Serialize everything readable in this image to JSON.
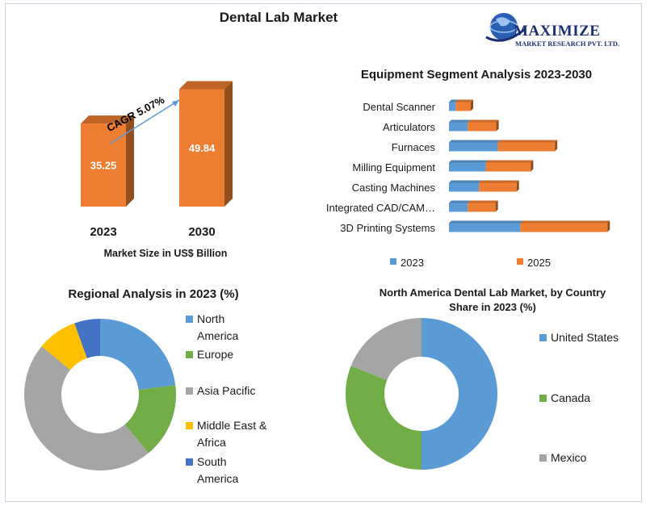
{
  "header": {
    "title": "Dental Lab Market"
  },
  "logo": {
    "brand": "MAXIMIZE",
    "sub": "MARKET RESEARCH PVT. LTD."
  },
  "colors": {
    "orange": "#ed7d31",
    "blue": "#5b9bd5",
    "green": "#70ad47",
    "gray": "#a5a5a5",
    "yellow": "#ffc000",
    "darkblue": "#4472c4"
  },
  "market_size": {
    "caption": "Market Size in US$ Billion",
    "cagr_label": "CAGR 5.07%"
  },
  "equipment": {
    "title": "Equipment Segment Analysis 2023-2030"
  },
  "regional": {
    "title": "Regional Analysis in 2023 (%)"
  },
  "north_america": {
    "title_line1": "North America Dental Lab Market, by Country",
    "title_line2": "Share in 2023 (%)"
  },
  "chart_data": [
    {
      "type": "bar",
      "categories": [
        "2023",
        "2030"
      ],
      "values": [
        35.25,
        49.84
      ],
      "data_labels": [
        "35.25",
        "49.84"
      ],
      "xlabel": "Market Size in US$ Billion",
      "annotation": "CAGR 5.07%"
    },
    {
      "type": "bar",
      "orientation": "horizontal-stacked",
      "title": "Equipment Segment Analysis 2023-2030",
      "categories": [
        "Dental Scanner",
        "Articulators",
        "Furnaces",
        "Milling Equipment",
        "Casting Machines",
        "Integrated CAD/CAM…",
        "3D Printing Systems"
      ],
      "series": [
        {
          "name": "2023",
          "color": "#5b9bd5",
          "values": [
            0.9,
            2.5,
            6.5,
            4.9,
            4.0,
            2.5,
            9.5
          ]
        },
        {
          "name": "2025",
          "color": "#ed7d31",
          "values": [
            2.0,
            3.8,
            7.6,
            6.0,
            5.0,
            3.7,
            11.6
          ]
        }
      ],
      "legend": "bottom"
    },
    {
      "type": "pie",
      "donut": true,
      "title": "Regional Analysis in 2023 (%)",
      "labels": [
        "North America",
        "Europe",
        "Asia Pacific",
        "Middle East & Africa",
        "South America"
      ],
      "legend_lines": [
        [
          "North",
          "America"
        ],
        [
          "Europe"
        ],
        [
          "Asia Pacific"
        ],
        [
          "Middle East &",
          "Africa"
        ],
        [
          "South",
          "America"
        ]
      ],
      "values": [
        23,
        16,
        47,
        8.5,
        5.5
      ],
      "colors": [
        "#5b9bd5",
        "#70ad47",
        "#a5a5a5",
        "#ffc000",
        "#4472c4"
      ],
      "legend": "right"
    },
    {
      "type": "pie",
      "donut": true,
      "title": "North America Dental Lab Market, by Country Share in 2023 (%)",
      "labels": [
        "United States",
        "Canada",
        "Mexico"
      ],
      "values": [
        50,
        31,
        19
      ],
      "colors": [
        "#5b9bd5",
        "#70ad47",
        "#a5a5a5"
      ],
      "legend": "right"
    }
  ]
}
